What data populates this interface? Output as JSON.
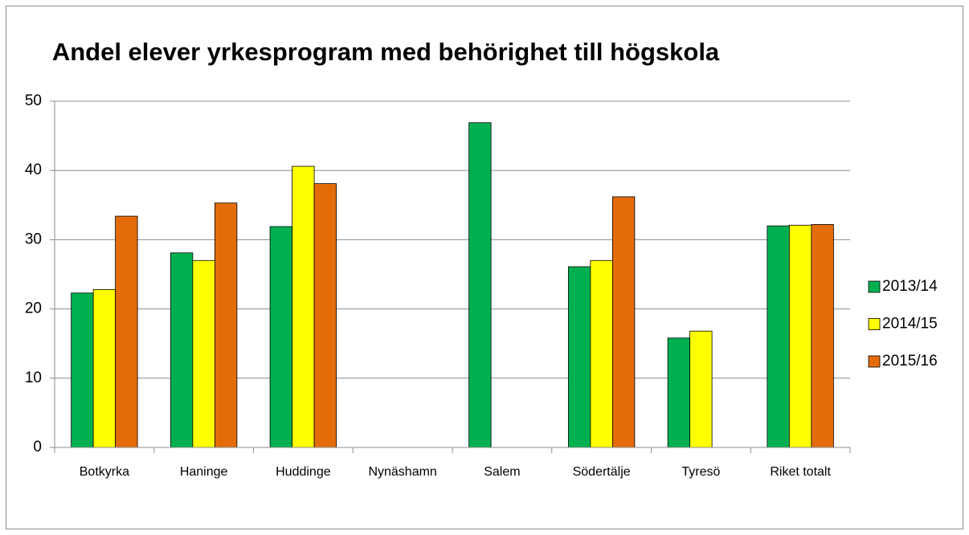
{
  "chart_data": {
    "type": "bar",
    "title": "Andel elever yrkesprogram med behörighet till högskola",
    "categories": [
      "Botkyrka",
      "Haninge",
      "Huddinge",
      "Nynäshamn",
      "Salem",
      "Södertälje",
      "Tyresö",
      "Riket totalt"
    ],
    "series": [
      {
        "name": "2013/14",
        "color": "#00b050",
        "values": [
          22.3,
          28.1,
          31.9,
          null,
          46.9,
          26.1,
          15.8,
          32.0
        ]
      },
      {
        "name": "2014/15",
        "color": "#ffff00",
        "values": [
          22.8,
          27.0,
          40.6,
          null,
          null,
          27.0,
          16.8,
          32.1
        ]
      },
      {
        "name": "2015/16",
        "color": "#e36c09",
        "values": [
          33.4,
          35.3,
          38.1,
          null,
          null,
          36.2,
          null,
          32.2
        ]
      }
    ],
    "ylim": [
      0,
      50
    ],
    "yticks": [
      0,
      10,
      20,
      30,
      40,
      50
    ],
    "grid": true,
    "legend": "right"
  }
}
